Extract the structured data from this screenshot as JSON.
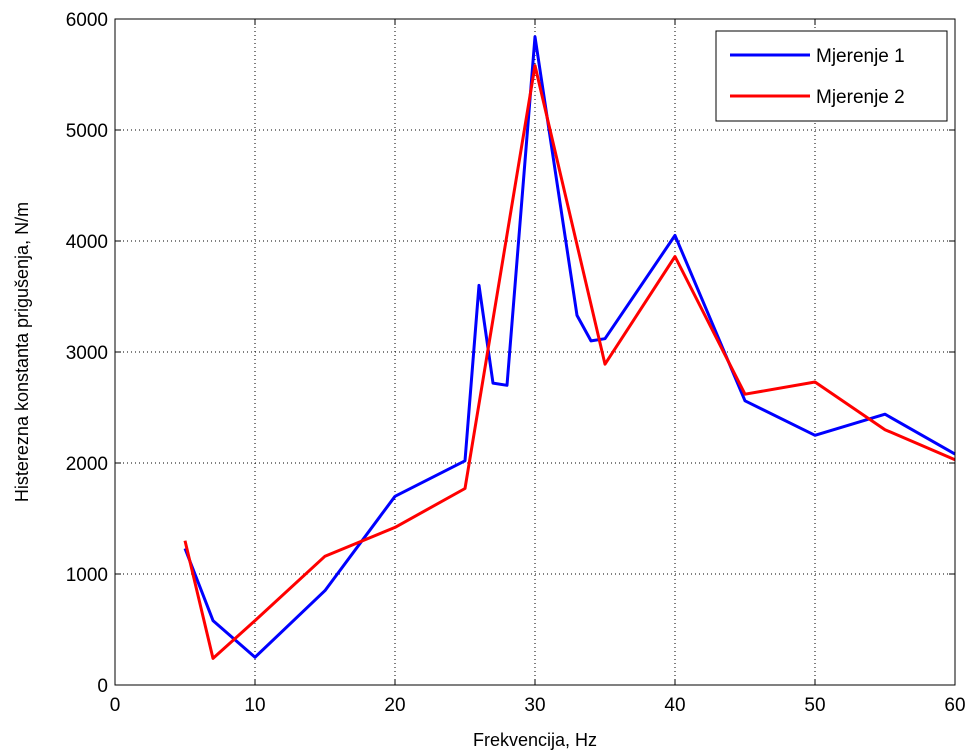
{
  "chart_data": {
    "type": "line",
    "title": "",
    "xlabel": "Frekvencija, Hz",
    "ylabel": "Histerezna konstanta prigušenja, N/m",
    "xlim": [
      0,
      60
    ],
    "ylim": [
      0,
      6000
    ],
    "xticks": [
      0,
      10,
      20,
      30,
      40,
      50,
      60
    ],
    "yticks": [
      0,
      1000,
      2000,
      3000,
      4000,
      5000,
      6000
    ],
    "xtick_labels": [
      "0",
      "10",
      "20",
      "30",
      "40",
      "50",
      "60"
    ],
    "ytick_labels": [
      "0",
      "1000",
      "2000",
      "3000",
      "4000",
      "5000",
      "6000"
    ],
    "grid": true,
    "grid_style": "dotted",
    "legend_position": "top-right",
    "series": [
      {
        "name": "Mjerenje 1",
        "color": "#0000ff",
        "x": [
          5,
          7,
          10,
          15,
          20,
          25,
          26,
          27,
          28,
          30,
          33,
          34,
          35,
          40,
          45,
          50,
          55,
          60
        ],
        "y": [
          1230,
          580,
          250,
          850,
          1700,
          2020,
          3600,
          2720,
          2700,
          5840,
          3330,
          3100,
          3120,
          4050,
          2560,
          2250,
          2440,
          2080
        ]
      },
      {
        "name": "Mjerenje 2",
        "color": "#ff0000",
        "x": [
          5,
          7,
          10,
          15,
          20,
          25,
          30,
          35,
          40,
          45,
          50,
          55,
          60
        ],
        "y": [
          1300,
          240,
          580,
          1160,
          1420,
          1770,
          5580,
          2890,
          3860,
          2620,
          2730,
          2300,
          2030
        ]
      }
    ]
  }
}
